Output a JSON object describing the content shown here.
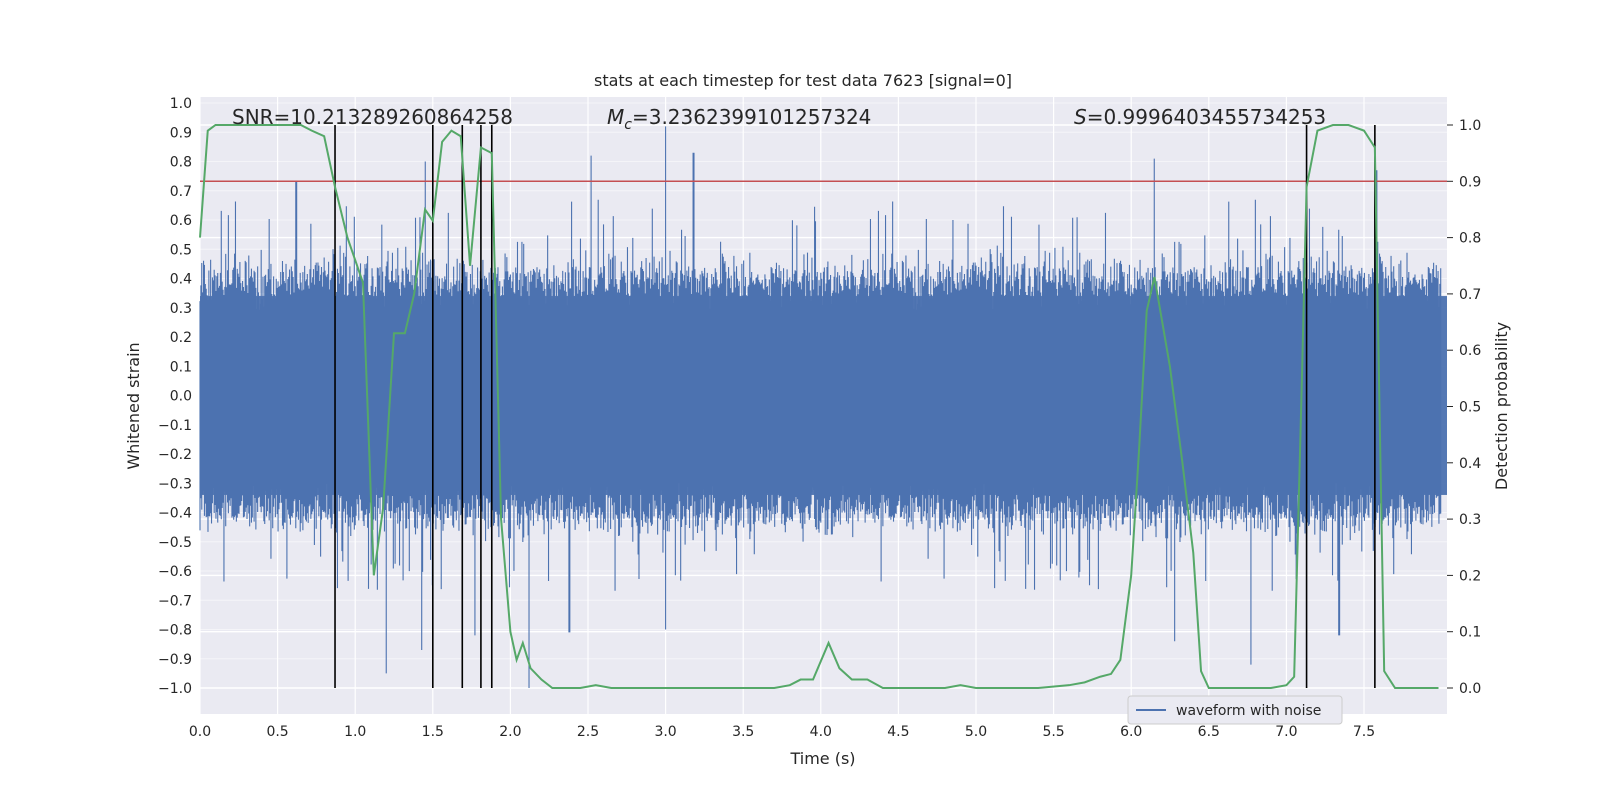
{
  "chart_data": {
    "type": "line",
    "title": "stats at each timestep for test data 7623 [signal=0]",
    "xlabel": "Time (s)",
    "ylabel": "Whitened strain",
    "y2label": "Detection probability",
    "xlim": [
      0,
      8.0
    ],
    "ylim": [
      -1.1,
      1.0
    ],
    "y2lim": [
      -0.05,
      1.04
    ],
    "xticks": [
      "0.0",
      "0.5",
      "1.0",
      "1.5",
      "2.0",
      "2.5",
      "3.0",
      "3.5",
      "4.0",
      "4.5",
      "5.0",
      "5.5",
      "6.0",
      "6.5",
      "7.0",
      "7.5"
    ],
    "yticks": [
      "1.0",
      "0.9",
      "0.8",
      "0.7",
      "0.6",
      "0.5",
      "0.4",
      "0.3",
      "0.2",
      "0.1",
      "0.0",
      "−0.1",
      "−0.2",
      "−0.3",
      "−0.4",
      "−0.5",
      "−0.6",
      "−0.7",
      "−0.8",
      "−0.9",
      "−1.0"
    ],
    "y2ticks": [
      "1.0",
      "0.9",
      "0.8",
      "0.7",
      "0.6",
      "0.5",
      "0.4",
      "0.3",
      "0.2",
      "0.1",
      "0.0"
    ],
    "annotations": {
      "snr": "SNR=10.213289260864258",
      "mc_symbol": "M",
      "mc_sub": "c",
      "mc_value": "=3.2362399101257324",
      "s_symbol": "S",
      "s_value": "=0.9996403455734253"
    },
    "legend": {
      "label": "waveform with noise",
      "placement": "lower-right"
    },
    "threshold": {
      "axis": "right",
      "value": 0.9,
      "color": "#c44e52"
    },
    "vertical_lines": [
      0.87,
      1.5,
      1.69,
      1.81,
      1.88,
      7.13,
      7.57
    ],
    "waveform": {
      "color": "#4c72b0",
      "sample_count": 1400,
      "typical_amplitude": 0.4,
      "peaks_high": [
        [
          0.62,
          0.73
        ],
        [
          1.45,
          0.8
        ],
        [
          2.52,
          0.82
        ],
        [
          3.0,
          0.92
        ],
        [
          3.18,
          0.83
        ],
        [
          6.15,
          0.81
        ],
        [
          7.58,
          0.77
        ]
      ],
      "peaks_low": [
        [
          1.2,
          -0.95
        ],
        [
          1.43,
          -0.87
        ],
        [
          1.77,
          -0.82
        ],
        [
          2.12,
          -1.0
        ],
        [
          2.38,
          -0.81
        ],
        [
          3.0,
          -0.8
        ],
        [
          6.28,
          -0.84
        ],
        [
          6.77,
          -0.92
        ],
        [
          7.34,
          -0.82
        ]
      ]
    },
    "series": [
      {
        "name": "",
        "axis": "right",
        "color": "#55a868",
        "x": [
          0.0,
          0.05,
          0.1,
          0.15,
          0.25,
          0.35,
          0.45,
          0.55,
          0.65,
          0.72,
          0.8,
          0.87,
          0.95,
          1.05,
          1.12,
          1.18,
          1.25,
          1.32,
          1.38,
          1.45,
          1.5,
          1.56,
          1.62,
          1.68,
          1.74,
          1.81,
          1.88,
          1.94,
          2.0,
          2.04,
          2.08,
          2.13,
          2.2,
          2.27,
          2.35,
          2.45,
          2.55,
          2.65,
          2.75,
          2.85,
          3.0,
          3.2,
          3.4,
          3.6,
          3.7,
          3.8,
          3.87,
          3.95,
          4.05,
          4.12,
          4.2,
          4.3,
          4.4,
          4.6,
          4.8,
          4.9,
          5.0,
          5.2,
          5.4,
          5.6,
          5.7,
          5.8,
          5.87,
          5.93,
          6.0,
          6.05,
          6.1,
          6.15,
          6.2,
          6.25,
          6.33,
          6.4,
          6.45,
          6.5,
          6.6,
          6.7,
          6.8,
          6.9,
          7.0,
          7.05,
          7.1,
          7.13,
          7.2,
          7.3,
          7.4,
          7.5,
          7.57,
          7.63,
          7.7,
          7.8,
          7.9,
          7.98
        ],
        "values": [
          0.8,
          0.99,
          1.0,
          1.0,
          1.0,
          1.0,
          1.0,
          1.0,
          1.0,
          0.99,
          0.98,
          0.89,
          0.8,
          0.72,
          0.2,
          0.32,
          0.63,
          0.63,
          0.7,
          0.85,
          0.83,
          0.97,
          0.99,
          0.98,
          0.75,
          0.96,
          0.95,
          0.3,
          0.1,
          0.05,
          0.08,
          0.035,
          0.015,
          0.0,
          0.0,
          0.0,
          0.005,
          0.0,
          0.0,
          0.0,
          0.0,
          0.0,
          0.0,
          0.0,
          0.0,
          0.005,
          0.015,
          0.015,
          0.08,
          0.035,
          0.015,
          0.015,
          0.0,
          0.0,
          0.0,
          0.005,
          0.0,
          0.0,
          0.0,
          0.005,
          0.01,
          0.02,
          0.025,
          0.05,
          0.2,
          0.42,
          0.67,
          0.73,
          0.65,
          0.57,
          0.4,
          0.24,
          0.03,
          0.0,
          0.0,
          0.0,
          0.0,
          0.0,
          0.005,
          0.02,
          0.55,
          0.89,
          0.99,
          1.0,
          1.0,
          0.99,
          0.96,
          0.03,
          0.0,
          0.0,
          0.0,
          0.0
        ]
      }
    ]
  }
}
